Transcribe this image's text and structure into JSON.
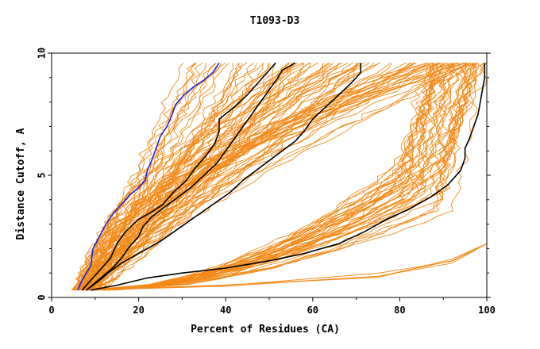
{
  "chart_data": {
    "type": "line",
    "title": "T1093-D3",
    "xlabel": "Percent of Residues (CA)",
    "ylabel": "Distance Cutoff, A",
    "xlim": [
      0,
      100
    ],
    "ylim": [
      0,
      10
    ],
    "x_ticks": [
      "0",
      "20",
      "40",
      "60",
      "80",
      "100"
    ],
    "y_ticks": [
      "0",
      "5",
      "10"
    ],
    "grid": false,
    "legend": "none",
    "colors": {
      "background_models": "#f28b1a",
      "highlight_black": "#000000",
      "highlight_blue": "#1f1fdc",
      "frame": "#000000"
    },
    "highlighted_series": [
      {
        "color": "#1f1fdc",
        "points": [
          [
            6,
            0.3
          ],
          [
            7,
            0.7
          ],
          [
            9,
            1.3
          ],
          [
            9.5,
            2
          ],
          [
            11,
            2.5
          ],
          [
            12.5,
            3
          ],
          [
            14,
            3.4
          ],
          [
            16,
            3.8
          ],
          [
            18,
            4.2
          ],
          [
            20,
            4.5
          ],
          [
            21.5,
            4.8
          ],
          [
            22,
            5.2
          ],
          [
            23,
            5.6
          ],
          [
            24,
            6.1
          ],
          [
            25,
            6.6
          ],
          [
            26.5,
            7
          ],
          [
            27.5,
            7.4
          ],
          [
            28.5,
            7.9
          ],
          [
            30.5,
            8.3
          ],
          [
            32.5,
            8.6
          ],
          [
            35,
            8.9
          ],
          [
            37,
            9.2
          ],
          [
            38.5,
            9.6
          ]
        ]
      },
      {
        "color": "#000000",
        "points": [
          [
            7,
            0.3
          ],
          [
            9,
            0.7
          ],
          [
            11,
            1.1
          ],
          [
            13.5,
            1.6
          ],
          [
            15,
            2.2
          ],
          [
            17,
            2.7
          ],
          [
            20,
            3.2
          ],
          [
            23,
            3.5
          ],
          [
            25.5,
            3.8
          ],
          [
            28,
            4.3
          ],
          [
            31,
            4.8
          ],
          [
            33,
            5.3
          ],
          [
            35.5,
            5.8
          ],
          [
            37.5,
            6.3
          ],
          [
            38.5,
            6.8
          ],
          [
            38.5,
            7.3
          ],
          [
            42,
            7.8
          ],
          [
            45,
            8.3
          ],
          [
            47.5,
            8.8
          ],
          [
            50,
            9.3
          ],
          [
            51.5,
            9.6
          ]
        ]
      },
      {
        "color": "#000000",
        "points": [
          [
            8,
            0.3
          ],
          [
            11,
            0.7
          ],
          [
            13,
            1
          ],
          [
            16,
            1.4
          ],
          [
            20,
            1.8
          ],
          [
            25,
            2.3
          ],
          [
            29,
            2.8
          ],
          [
            33,
            3.3
          ],
          [
            37,
            3.8
          ],
          [
            41,
            4.3
          ],
          [
            44,
            4.8
          ],
          [
            47,
            5.2
          ],
          [
            50,
            5.6
          ],
          [
            53,
            6
          ],
          [
            56,
            6.4
          ],
          [
            58,
            6.8
          ],
          [
            60,
            7.3
          ],
          [
            63,
            7.8
          ],
          [
            66,
            8.3
          ],
          [
            69,
            8.8
          ],
          [
            71,
            9.2
          ],
          [
            71,
            9.6
          ]
        ]
      },
      {
        "color": "#000000",
        "points": [
          [
            9,
            0.3
          ],
          [
            15,
            0.5
          ],
          [
            22,
            0.8
          ],
          [
            30,
            1
          ],
          [
            40,
            1.2
          ],
          [
            50,
            1.5
          ],
          [
            58,
            1.8
          ],
          [
            66,
            2.2
          ],
          [
            72,
            2.7
          ],
          [
            77,
            3.2
          ],
          [
            82,
            3.6
          ],
          [
            87,
            4.1
          ],
          [
            91,
            4.6
          ],
          [
            94,
            5.2
          ],
          [
            95,
            5.7
          ],
          [
            95,
            6.1
          ],
          [
            96,
            6.5
          ],
          [
            97,
            7
          ],
          [
            98,
            7.5
          ],
          [
            98.5,
            8
          ],
          [
            99,
            8.5
          ],
          [
            99.5,
            9
          ],
          [
            99.5,
            9.6
          ]
        ]
      },
      {
        "color": "#000000",
        "points": [
          [
            8,
            0.3
          ],
          [
            10,
            0.6
          ],
          [
            12,
            0.9
          ],
          [
            14,
            1.2
          ],
          [
            16,
            1.6
          ],
          [
            18,
            2.1
          ],
          [
            20,
            2.5
          ],
          [
            21,
            2.9
          ],
          [
            23,
            3.3
          ],
          [
            26,
            3.7
          ],
          [
            29,
            4.1
          ],
          [
            32,
            4.5
          ],
          [
            35,
            5
          ],
          [
            38,
            5.5
          ],
          [
            40,
            6
          ],
          [
            42,
            6.5
          ],
          [
            44,
            7
          ],
          [
            46,
            7.5
          ],
          [
            48,
            8
          ],
          [
            50,
            8.5
          ],
          [
            52,
            9
          ],
          [
            53,
            9.3
          ],
          [
            56,
            9.6
          ]
        ]
      }
    ]
  }
}
